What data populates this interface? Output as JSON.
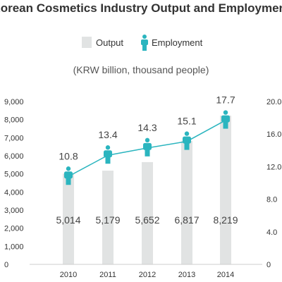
{
  "chart_data": {
    "type": "bar",
    "title": "Korean Cosmetics Industry Output and Employment",
    "subtitle": "(KRW billion, thousand people)",
    "categories": [
      "2010",
      "2011",
      "2012",
      "2013",
      "2014"
    ],
    "series": [
      {
        "name": "Output",
        "type": "bar",
        "axis": "left",
        "values": [
          5014,
          5179,
          5652,
          6817,
          8219
        ],
        "labels": [
          "5,014",
          "5,179",
          "5,652",
          "6,817",
          "8,219"
        ],
        "color": "#e1e3e3"
      },
      {
        "name": "Employment",
        "type": "line",
        "axis": "right",
        "values": [
          10.8,
          13.4,
          14.3,
          15.1,
          17.7
        ],
        "labels": [
          "10.8",
          "13.4",
          "14.3",
          "15.1",
          "17.7"
        ],
        "color": "#2bb5bf"
      }
    ],
    "left_axis": {
      "ylim": [
        0,
        9000
      ],
      "ticks": [
        "0",
        "1,000",
        "2,000",
        "3,000",
        "4,000",
        "5,000",
        "6,000",
        "7,000",
        "8,000",
        "9,000"
      ]
    },
    "right_axis": {
      "ylim": [
        0,
        20
      ],
      "ticks": [
        "0",
        "4.0",
        "8.0",
        "12.0",
        "16.0",
        "20.0"
      ]
    },
    "legend_position": "top-center",
    "grid": false
  }
}
